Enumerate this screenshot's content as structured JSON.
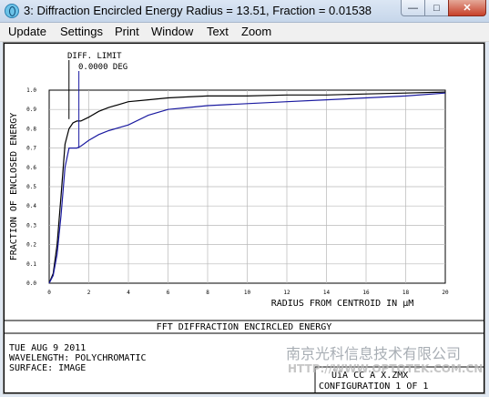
{
  "window": {
    "title": "3: Diffraction Encircled Energy Radius = 13.51, Fraction = 0.01538",
    "minimize_glyph": "—",
    "maximize_glyph": "□",
    "close_glyph": "✕"
  },
  "menu": [
    "Update",
    "Settings",
    "Print",
    "Window",
    "Text",
    "Zoom"
  ],
  "plot": {
    "limit_label": "DIFF. LIMIT",
    "field_label": "0.0000 DEG",
    "footer_title": "FFT DIFFRACTION ENCIRCLED ENERGY",
    "info_lines": [
      "TUE AUG 9 2011",
      "WAVELENGTH: POLYCHROMATIC",
      "SURFACE: IMAGE"
    ],
    "file_line": "ÙïA  CC A  X.ZMX",
    "config_line": "CONFIGURATION 1 OF 1",
    "watermark_cn": "南京光科信息技术有限公司",
    "watermark_url": "HTTP://WWW.OPTOTEK.COM.CN"
  },
  "chart_data": {
    "type": "line",
    "xlabel": "RADIUS FROM CENTROID IN µM",
    "ylabel": "FRACTION OF ENCLOSED ENERGY",
    "xlim": [
      0,
      20
    ],
    "ylim": [
      0,
      1
    ],
    "x_ticks": [
      "0",
      "2",
      "4",
      "6",
      "8",
      "10",
      "12",
      "14",
      "16",
      "18",
      "20"
    ],
    "y_ticks": [
      "0.0",
      "0.1",
      "0.2",
      "0.3",
      "0.4",
      "0.5",
      "0.6",
      "0.7",
      "0.8",
      "0.9",
      "1.0"
    ],
    "grid": true,
    "diffraction_limit_x": 1.0,
    "field_marker_x": 1.5,
    "series": [
      {
        "x": [
          0,
          0.2,
          0.4,
          0.6,
          0.8,
          1.0,
          1.2,
          1.4,
          1.6,
          2.0,
          2.5,
          3.0,
          4.0,
          5.0,
          6.0,
          7.0,
          8.0,
          10.0,
          12.0,
          14.0,
          16.0,
          18.0,
          20.0
        ],
        "values": [
          0,
          0.05,
          0.2,
          0.45,
          0.72,
          0.8,
          0.83,
          0.84,
          0.84,
          0.86,
          0.89,
          0.91,
          0.94,
          0.95,
          0.96,
          0.965,
          0.97,
          0.97,
          0.975,
          0.975,
          0.98,
          0.985,
          0.99
        ],
        "color": "#000000"
      },
      {
        "x": [
          0,
          0.2,
          0.4,
          0.6,
          0.8,
          1.0,
          1.2,
          1.4,
          1.6,
          2.0,
          2.5,
          3.0,
          4.0,
          5.0,
          6.0,
          7.0,
          8.0,
          10.0,
          12.0,
          14.0,
          16.0,
          18.0,
          20.0
        ],
        "values": [
          0,
          0.04,
          0.15,
          0.35,
          0.6,
          0.7,
          0.7,
          0.7,
          0.71,
          0.74,
          0.77,
          0.79,
          0.82,
          0.87,
          0.9,
          0.91,
          0.92,
          0.93,
          0.94,
          0.95,
          0.96,
          0.97,
          0.985
        ],
        "color": "#1a1aa0"
      }
    ]
  }
}
